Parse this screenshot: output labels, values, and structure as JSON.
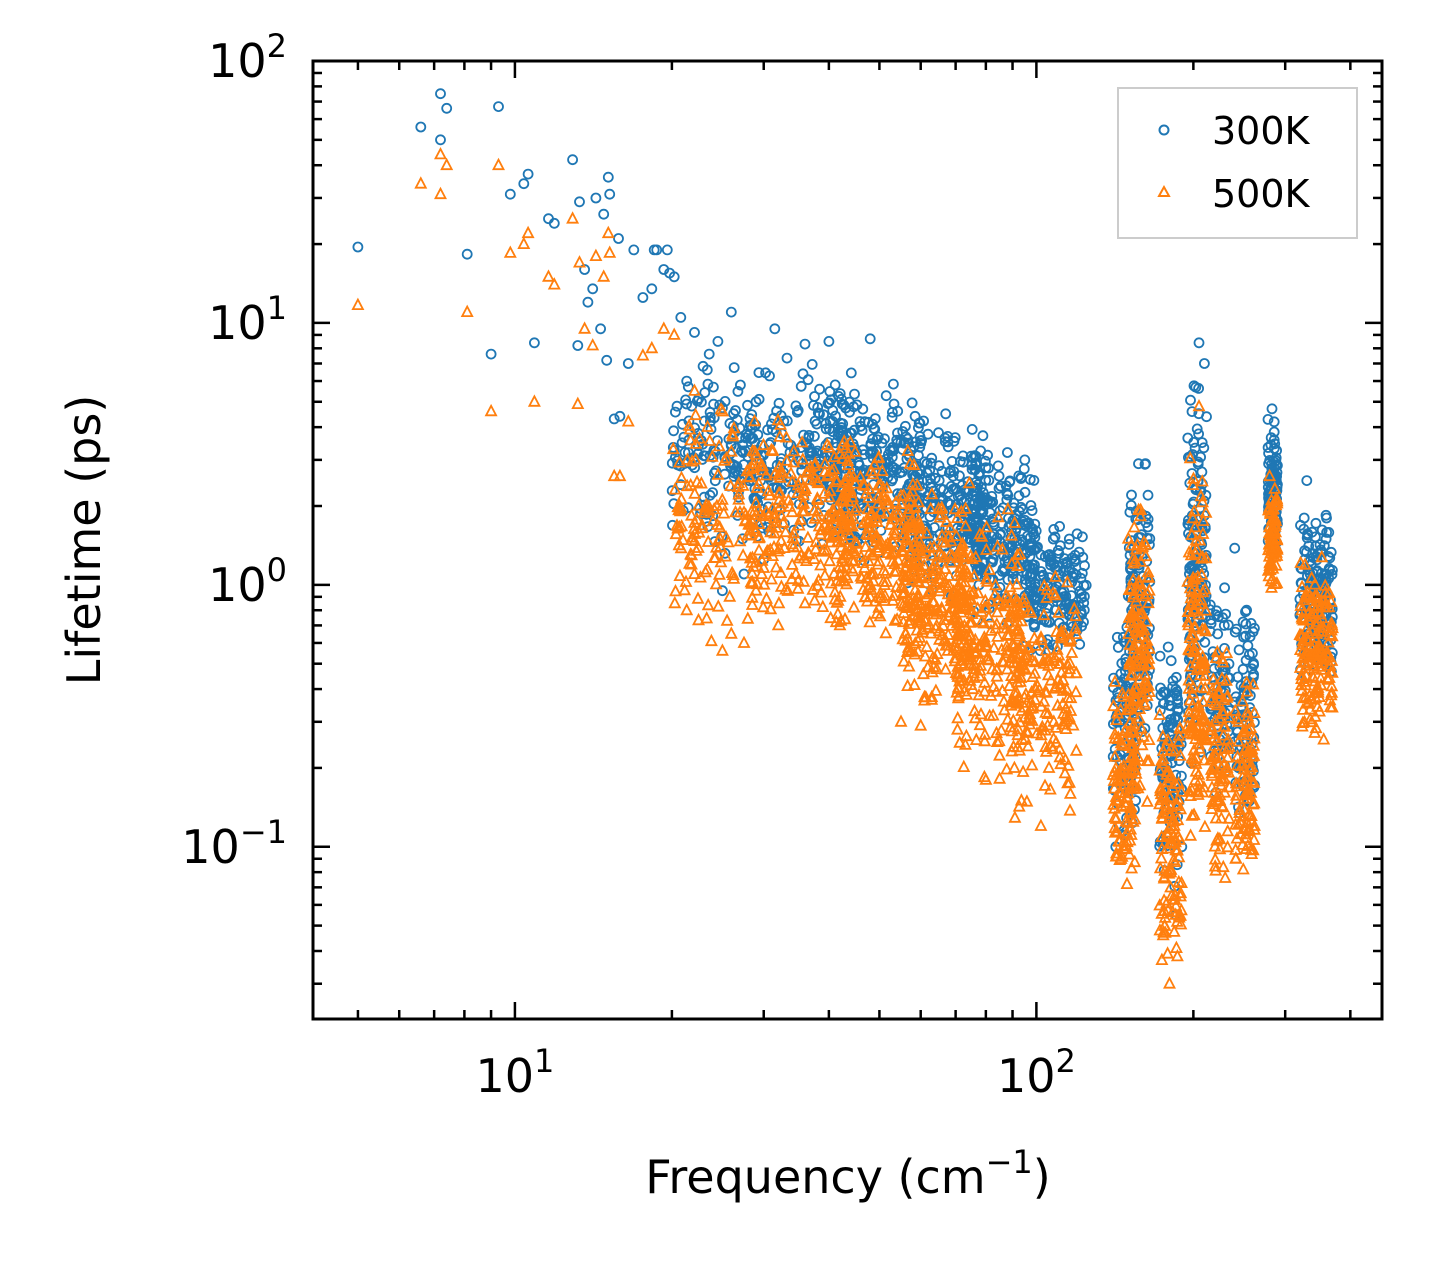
{
  "chart_data": {
    "type": "scatter",
    "xscale": "log",
    "yscale": "log",
    "xlim": [
      4.1,
      460
    ],
    "ylim": [
      0.022,
      100
    ],
    "xlabel_main": "Frequency (cm",
    "xlabel_sup": "−1",
    "xlabel_end": ")",
    "ylabel": "Lifetime (ps)",
    "x_major_ticks": [
      {
        "value": 10,
        "base": "10",
        "exp": "1"
      },
      {
        "value": 100,
        "base": "10",
        "exp": "2"
      }
    ],
    "y_major_ticks": [
      {
        "value": 0.1,
        "base": "10",
        "exp": "−1"
      },
      {
        "value": 1,
        "base": "10",
        "exp": "0"
      },
      {
        "value": 10,
        "base": "10",
        "exp": "1"
      },
      {
        "value": 100,
        "base": "10",
        "exp": "2"
      }
    ],
    "legend_position": "top-right",
    "series": [
      {
        "name": "300K",
        "color": "#1f77b4",
        "marker": "circle",
        "points": [
          [
            5.0,
            19.5
          ],
          [
            6.6,
            56
          ],
          [
            7.2,
            75
          ],
          [
            7.2,
            50
          ],
          [
            7.4,
            66
          ],
          [
            8.1,
            18.3
          ],
          [
            9.0,
            7.6
          ],
          [
            9.3,
            67
          ],
          [
            9.8,
            31
          ],
          [
            10.4,
            34
          ],
          [
            10.6,
            37
          ],
          [
            10.9,
            8.4
          ],
          [
            11.6,
            25
          ],
          [
            11.9,
            24
          ],
          [
            12.9,
            42
          ],
          [
            13.2,
            8.2
          ],
          [
            13.3,
            29
          ],
          [
            13.6,
            16
          ],
          [
            13.8,
            12
          ],
          [
            14.1,
            13.5
          ],
          [
            14.3,
            30
          ],
          [
            14.6,
            9.5
          ],
          [
            14.8,
            26
          ],
          [
            15.1,
            36
          ],
          [
            15.0,
            7.2
          ],
          [
            15.2,
            31
          ],
          [
            15.5,
            4.3
          ],
          [
            15.9,
            4.4
          ],
          [
            15.8,
            21
          ],
          [
            16.5,
            7.0
          ],
          [
            16.9,
            19
          ],
          [
            17.6,
            12.5
          ],
          [
            18.3,
            13.5
          ],
          [
            18.5,
            19
          ],
          [
            18.7,
            19
          ],
          [
            19.3,
            16
          ],
          [
            19.6,
            19
          ],
          [
            19.8,
            15.5
          ],
          [
            20.2,
            15
          ],
          [
            20.8,
            10.5
          ],
          [
            22.1,
            9.2
          ],
          [
            24.5,
            8.5
          ],
          [
            26.0,
            11
          ],
          [
            27.5,
            1.1
          ],
          [
            29.0,
            5.0
          ],
          [
            30.0,
            1.25
          ],
          [
            31.5,
            9.5
          ],
          [
            36.0,
            8.3
          ],
          [
            40.0,
            8.5
          ],
          [
            48.0,
            8.7
          ],
          [
            55.0,
            3.5
          ],
          [
            67.0,
            4.5
          ],
          [
            75.0,
            3.1
          ],
          [
            80.0,
            2.8
          ],
          [
            88.0,
            3.2
          ],
          [
            95.0,
            3.0
          ],
          [
            25.0,
            0.95
          ],
          [
            142.0,
            0.1
          ],
          [
            157.0,
            2.9
          ],
          [
            165.0,
            1.5
          ],
          [
            185.0,
            0.055
          ],
          [
            190.0,
            0.1
          ],
          [
            205.0,
            8.4
          ],
          [
            210.0,
            7.0
          ],
          [
            240.0,
            1.38
          ],
          [
            253.0,
            0.8
          ],
          [
            283.0,
            4.7
          ],
          [
            330.0,
            2.5
          ],
          [
            360.0,
            1.8
          ]
        ],
        "bands": [
          {
            "x": [
              20,
              30
            ],
            "y": [
              1.2,
              8.0
            ],
            "n": 150
          },
          {
            "x": [
              28,
              45
            ],
            "y": [
              1.3,
              7.5
            ],
            "n": 200
          },
          {
            "x": [
              40,
              60
            ],
            "y": [
              1.2,
              6.0
            ],
            "n": 240
          },
          {
            "x": [
              55,
              80
            ],
            "y": [
              0.9,
              4.5
            ],
            "n": 260
          },
          {
            "x": [
              75,
              100
            ],
            "y": [
              0.7,
              3.2
            ],
            "n": 220
          },
          {
            "x": [
              95,
              125
            ],
            "y": [
              0.5,
              1.8
            ],
            "n": 180
          },
          {
            "x": [
              140,
              155
            ],
            "y": [
              0.1,
              0.9
            ],
            "n": 100
          },
          {
            "x": [
              150,
              165
            ],
            "y": [
              0.2,
              3.0
            ],
            "n": 130
          },
          {
            "x": [
              172,
              190
            ],
            "y": [
              0.06,
              0.7
            ],
            "n": 110
          },
          {
            "x": [
              195,
              212
            ],
            "y": [
              0.2,
              7.0
            ],
            "n": 150
          },
          {
            "x": [
              215,
              235
            ],
            "y": [
              0.12,
              1.1
            ],
            "n": 80
          },
          {
            "x": [
              240,
              262
            ],
            "y": [
              0.12,
              0.9
            ],
            "n": 90
          },
          {
            "x": [
              278,
              290
            ],
            "y": [
              1.2,
              4.6
            ],
            "n": 90
          },
          {
            "x": [
              320,
              370
            ],
            "y": [
              0.4,
              2.0
            ],
            "n": 160
          }
        ]
      },
      {
        "name": "500K",
        "color": "#ff7f0e",
        "marker": "triangle",
        "points": [
          [
            5.0,
            11.7
          ],
          [
            6.6,
            34
          ],
          [
            7.2,
            44
          ],
          [
            7.2,
            31
          ],
          [
            7.4,
            40
          ],
          [
            8.1,
            11
          ],
          [
            9.0,
            4.6
          ],
          [
            9.3,
            40
          ],
          [
            9.8,
            18.5
          ],
          [
            10.4,
            20
          ],
          [
            10.6,
            22
          ],
          [
            10.9,
            5.0
          ],
          [
            11.6,
            15
          ],
          [
            11.9,
            14
          ],
          [
            12.9,
            25
          ],
          [
            13.2,
            4.9
          ],
          [
            13.3,
            17
          ],
          [
            13.6,
            9.5
          ],
          [
            14.1,
            8.2
          ],
          [
            14.3,
            18
          ],
          [
            14.8,
            15
          ],
          [
            15.1,
            22
          ],
          [
            15.2,
            18.5
          ],
          [
            15.5,
            2.6
          ],
          [
            15.9,
            2.6
          ],
          [
            16.5,
            4.2
          ],
          [
            17.6,
            7.5
          ],
          [
            18.3,
            8.0
          ],
          [
            19.3,
            9.5
          ],
          [
            20.2,
            9.0
          ],
          [
            22.1,
            5.5
          ],
          [
            25.0,
            0.56
          ],
          [
            26.0,
            0.65
          ],
          [
            27.5,
            0.6
          ],
          [
            29.0,
            0.95
          ],
          [
            32.0,
            0.7
          ],
          [
            36.0,
            0.85
          ],
          [
            42.0,
            0.7
          ],
          [
            55.0,
            0.3
          ],
          [
            60.0,
            0.29
          ],
          [
            80.0,
            0.18
          ],
          [
            102.0,
            0.12
          ],
          [
            108.0,
            0.3
          ],
          [
            205.0,
            4.8
          ],
          [
            185.0,
            0.055
          ],
          [
            180.0,
            0.03
          ],
          [
            280.0,
            2.6
          ]
        ],
        "bands": [
          {
            "x": [
              20,
              30
            ],
            "y": [
              0.6,
              5.5
            ],
            "n": 150
          },
          {
            "x": [
              28,
              45
            ],
            "y": [
              0.7,
              4.5
            ],
            "n": 220
          },
          {
            "x": [
              40,
              60
            ],
            "y": [
              0.6,
              3.5
            ],
            "n": 240
          },
          {
            "x": [
              55,
              75
            ],
            "y": [
              0.3,
              2.5
            ],
            "n": 260
          },
          {
            "x": [
              70,
              95
            ],
            "y": [
              0.18,
              2.0
            ],
            "n": 220
          },
          {
            "x": [
              90,
              120
            ],
            "y": [
              0.12,
              1.2
            ],
            "n": 180
          },
          {
            "x": [
              140,
              155
            ],
            "y": [
              0.06,
              0.5
            ],
            "n": 110
          },
          {
            "x": [
              150,
              165
            ],
            "y": [
              0.12,
              2.4
            ],
            "n": 130
          },
          {
            "x": [
              172,
              190
            ],
            "y": [
              0.03,
              0.35
            ],
            "n": 120
          },
          {
            "x": [
              195,
              212
            ],
            "y": [
              0.1,
              3.5
            ],
            "n": 150
          },
          {
            "x": [
              215,
              235
            ],
            "y": [
              0.07,
              0.6
            ],
            "n": 90
          },
          {
            "x": [
              240,
              262
            ],
            "y": [
              0.07,
              0.5
            ],
            "n": 90
          },
          {
            "x": [
              278,
              290
            ],
            "y": [
              0.9,
              2.6
            ],
            "n": 80
          },
          {
            "x": [
              320,
              370
            ],
            "y": [
              0.25,
              1.4
            ],
            "n": 160
          }
        ]
      }
    ]
  }
}
